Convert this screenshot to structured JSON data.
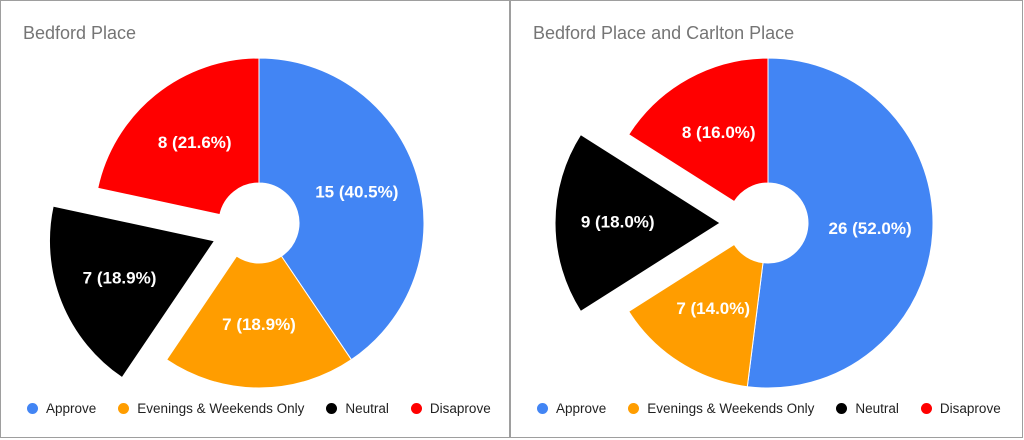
{
  "chart_data": [
    {
      "type": "pie",
      "title": "Bedford Place",
      "categories": [
        "Approve",
        "Evenings & Weekends Only",
        "Neutral",
        "Disaprove"
      ],
      "values": [
        15,
        7,
        7,
        8
      ],
      "value_labels": [
        "15 (40.5%)",
        "7 (18.9%)",
        "7 (18.9%)",
        "8 (21.6%)"
      ],
      "colors": [
        "#4285f4",
        "#ff9d00",
        "#000000",
        "#ff0000"
      ],
      "label_colors": [
        "#ffffff",
        "#ffffff",
        "#ffffff",
        "#ffffff"
      ],
      "exploded": [
        false,
        false,
        true,
        false
      ],
      "donut_hole": true,
      "legend": "bottom"
    },
    {
      "type": "pie",
      "title": "Bedford Place and Carlton Place",
      "categories": [
        "Approve",
        "Evenings & Weekends Only",
        "Neutral",
        "Disaprove"
      ],
      "values": [
        26,
        7,
        9,
        8
      ],
      "value_labels": [
        "26 (52.0%)",
        "7 (14.0%)",
        "9 (18.0%)",
        "8 (16.0%)"
      ],
      "colors": [
        "#4285f4",
        "#ff9d00",
        "#000000",
        "#ff0000"
      ],
      "label_colors": [
        "#ffffff",
        "#ffffff",
        "#ffffff",
        "#ffffff"
      ],
      "exploded": [
        false,
        false,
        true,
        false
      ],
      "donut_hole": true,
      "legend": "bottom"
    }
  ]
}
